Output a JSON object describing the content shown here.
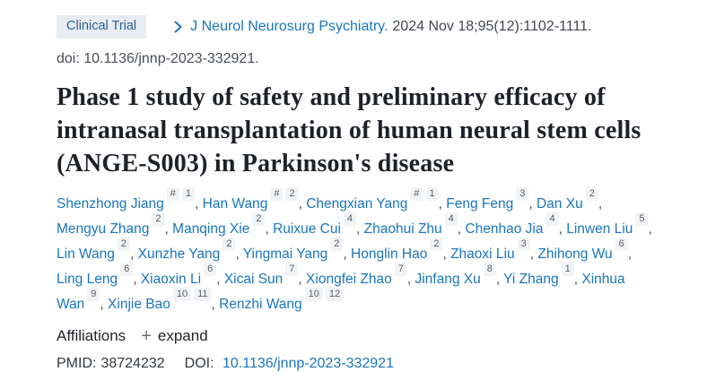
{
  "badge": {
    "label": "Clinical Trial"
  },
  "citation": {
    "journal": "J Neurol Neurosurg Psychiatry.",
    "details": "2024 Nov 18;95(12):1102-1111.",
    "doi_line": "doi: 10.1136/jnnp-2023-332921."
  },
  "title": "Phase 1 study of safety and preliminary efficacy of intranasal transplantation of human neural stem cells (ANGE-S003) in Parkinson's disease",
  "authors": [
    {
      "name": "Shenzhong Jiang",
      "sups": [
        "#",
        "1"
      ]
    },
    {
      "name": "Han Wang",
      "sups": [
        "#",
        "2"
      ]
    },
    {
      "name": "Chengxian Yang",
      "sups": [
        "#",
        "1"
      ]
    },
    {
      "name": "Feng Feng",
      "sups": [
        "3"
      ]
    },
    {
      "name": "Dan Xu",
      "sups": [
        "2"
      ]
    },
    {
      "name": "Mengyu Zhang",
      "sups": [
        "2"
      ]
    },
    {
      "name": "Manqing Xie",
      "sups": [
        "2"
      ]
    },
    {
      "name": "Ruixue Cui",
      "sups": [
        "4"
      ]
    },
    {
      "name": "Zhaohui Zhu",
      "sups": [
        "4"
      ]
    },
    {
      "name": "Chenhao Jia",
      "sups": [
        "4"
      ]
    },
    {
      "name": "Linwen Liu",
      "sups": [
        "5"
      ]
    },
    {
      "name": "Lin Wang",
      "sups": [
        "2"
      ]
    },
    {
      "name": "Xunzhe Yang",
      "sups": [
        "2"
      ]
    },
    {
      "name": "Yingmai Yang",
      "sups": [
        "2"
      ]
    },
    {
      "name": "Honglin Hao",
      "sups": [
        "2"
      ]
    },
    {
      "name": "Zhaoxi Liu",
      "sups": [
        "3"
      ]
    },
    {
      "name": "Zhihong Wu",
      "sups": [
        "6"
      ]
    },
    {
      "name": "Ling Leng",
      "sups": [
        "6"
      ]
    },
    {
      "name": "Xiaoxin Li",
      "sups": [
        "6"
      ]
    },
    {
      "name": "Xicai Sun",
      "sups": [
        "7"
      ]
    },
    {
      "name": "Xiongfei Zhao",
      "sups": [
        "7"
      ]
    },
    {
      "name": "Jinfang Xu",
      "sups": [
        "8"
      ]
    },
    {
      "name": "Yi Zhang",
      "sups": [
        "1"
      ]
    },
    {
      "name": "Xinhua Wan",
      "sups": [
        "9"
      ]
    },
    {
      "name": "Xinjie Bao",
      "sups": [
        "10",
        "11"
      ]
    },
    {
      "name": "Renzhi Wang",
      "sups": [
        "10",
        "12"
      ]
    }
  ],
  "affiliations": {
    "label": "Affiliations",
    "plus_icon": "+",
    "expand_label": "expand"
  },
  "ids": {
    "pmid_label": "PMID:",
    "pmid": "38724232",
    "doi_label": "DOI:",
    "doi_link": "10.1136/jnnp-2023-332921"
  },
  "colors": {
    "link_blue": "#1a75bc",
    "badge_background": "#e8ecf3",
    "badge_text": "#2a6191",
    "title_text": "#1e2227",
    "body_text": "#4a4f55",
    "superscript_background": "#f1f3f5"
  }
}
